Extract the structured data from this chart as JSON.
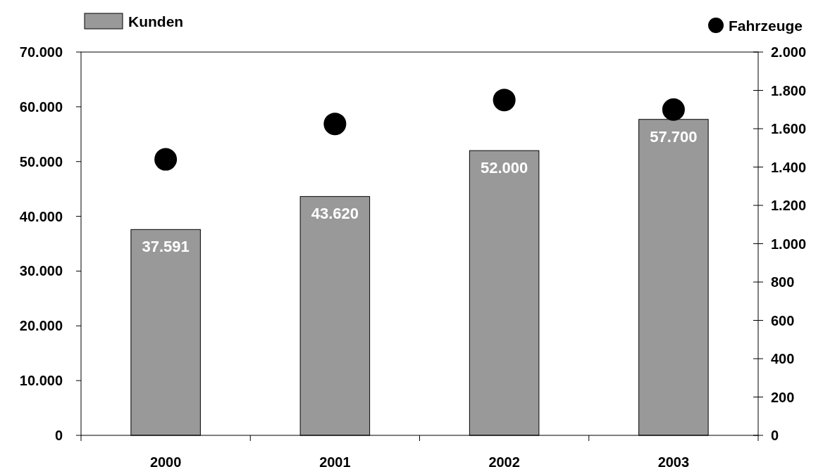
{
  "chart_data": {
    "type": "bar",
    "categories": [
      "2000",
      "2001",
      "2002",
      "2003"
    ],
    "series": [
      {
        "name": "Kunden",
        "color": "#999999",
        "values": [
          37591,
          43620,
          52000,
          57700
        ],
        "value_labels": [
          "37.591",
          "43.620",
          "52.000",
          "57.700"
        ]
      },
      {
        "name": "Fahrzeuge",
        "type": "scatter",
        "axis": "y2",
        "color": "#000000",
        "marker": "circle",
        "values": [
          1440,
          1625,
          1750,
          1700
        ]
      }
    ],
    "ylim": [
      0,
      70000
    ],
    "yticks": [
      {
        "value": 0,
        "label": "0"
      },
      {
        "value": 10000,
        "label": "10.000"
      },
      {
        "value": 20000,
        "label": "20.000"
      },
      {
        "value": 30000,
        "label": "30.000"
      },
      {
        "value": 40000,
        "label": "40.000"
      },
      {
        "value": 50000,
        "label": "50.000"
      },
      {
        "value": 60000,
        "label": "60.000"
      },
      {
        "value": 70000,
        "label": "70.000"
      }
    ],
    "y2lim": [
      0,
      2000
    ],
    "y2ticks": [
      0,
      200,
      400,
      600,
      800,
      {
        "value": 1000,
        "label": "1.000"
      },
      {
        "value": 1200,
        "label": "1.200"
      },
      {
        "value": 1400,
        "label": "1.400"
      },
      {
        "value": 1600,
        "label": "1.600"
      },
      {
        "value": 1800,
        "label": "1.800"
      },
      {
        "value": 2000,
        "label": "2.000"
      }
    ],
    "legend": "top",
    "grid": false
  }
}
